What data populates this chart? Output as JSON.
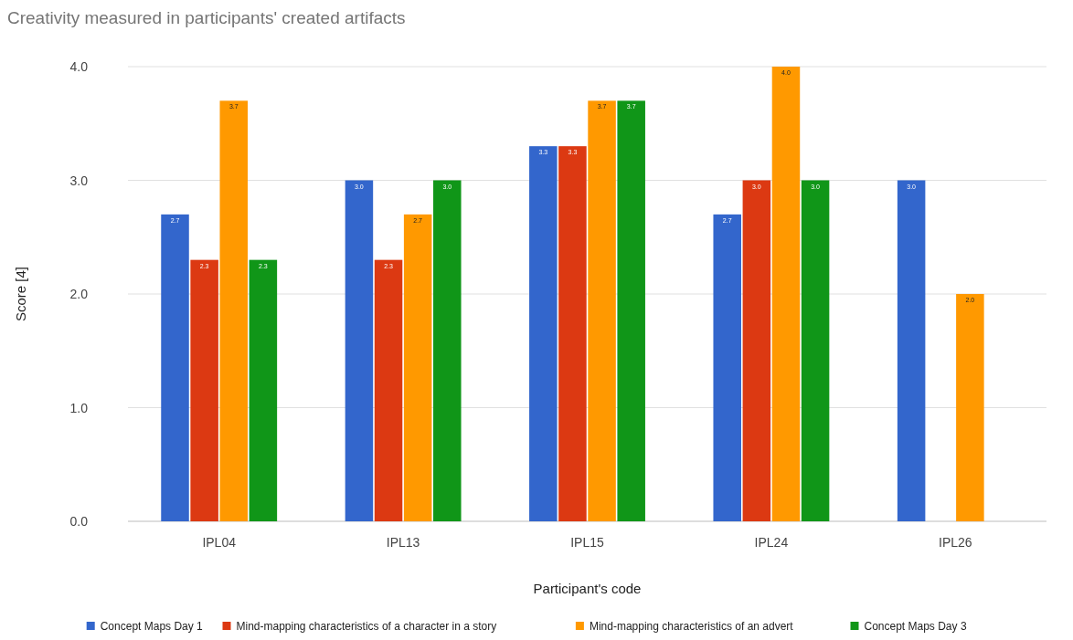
{
  "chart_data": {
    "type": "bar",
    "title": "Creativity measured in participants' created artifacts",
    "xlabel": "Participant's code",
    "ylabel": "Score [4]",
    "categories": [
      "IPL04",
      "IPL13",
      "IPL15",
      "IPL24",
      "IPL26"
    ],
    "series": [
      {
        "name": "Concept Maps Day 1",
        "color": "#3366cc",
        "values": [
          2.7,
          3.0,
          3.3,
          2.7,
          3.0
        ],
        "value_labels": [
          "2.7",
          "3.0",
          "3.3",
          "2.7",
          "3.0"
        ]
      },
      {
        "name": "Mind-mapping characteristics of a character in a story",
        "color": "#dc3912",
        "values": [
          2.3,
          2.3,
          3.3,
          3.0,
          null
        ],
        "value_labels": [
          "2.3",
          "2.3",
          "3.3",
          "3.0",
          null
        ]
      },
      {
        "name": "Mind-mapping characteristics of an advert",
        "color": "#ff9900",
        "values": [
          3.7,
          2.7,
          3.7,
          4.0,
          2.0
        ],
        "value_labels": [
          "3.7",
          "2.7",
          "3.7",
          "4.0",
          "2.0"
        ]
      },
      {
        "name": "Concept Maps Day 3",
        "color": "#109618",
        "values": [
          2.3,
          3.0,
          3.7,
          3.0,
          null
        ],
        "value_labels": [
          "2.3",
          "3.0",
          "3.7",
          "3.0",
          null
        ]
      }
    ],
    "ylim": [
      0,
      4
    ],
    "yticks": [
      {
        "value": 0,
        "label": "0.0"
      },
      {
        "value": 1,
        "label": "1.0"
      },
      {
        "value": 2,
        "label": "2.0"
      },
      {
        "value": 3,
        "label": "3.0"
      },
      {
        "value": 4,
        "label": "4.0"
      }
    ],
    "grid": "y",
    "legend": "bottom"
  }
}
